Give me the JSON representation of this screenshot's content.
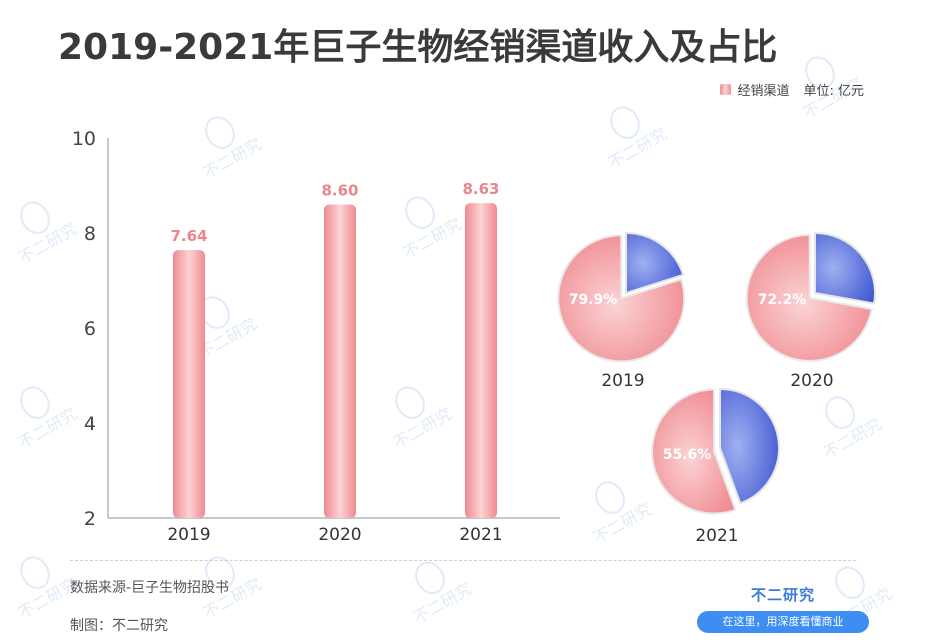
{
  "title": "2019-2021年巨子生物经销渠道收入及占比",
  "legend": {
    "series_name": "经销渠道",
    "unit": "单位: 亿元"
  },
  "colors": {
    "bar": "#f4a3a7",
    "bar_label": "#e8868a",
    "pie_main": "#f4a3a7",
    "pie_other": "#4d64d8"
  },
  "chart_data": [
    {
      "type": "bar",
      "categories": [
        "2019",
        "2020",
        "2021"
      ],
      "series": [
        {
          "name": "经销渠道",
          "values": [
            7.64,
            8.6,
            8.63
          ]
        }
      ],
      "data_labels": [
        "7.64",
        "8.60",
        "8.63"
      ],
      "yticks": [
        "2",
        "4",
        "6",
        "8",
        "10"
      ],
      "ylim": [
        2,
        10
      ],
      "grid": false
    },
    {
      "type": "pie",
      "pies": [
        {
          "label": "2019",
          "value": 79.9,
          "value_label": "79.9%"
        },
        {
          "label": "2020",
          "value": 72.2,
          "value_label": "72.2%"
        },
        {
          "label": "2021",
          "value": 55.6,
          "value_label": "55.6%"
        }
      ]
    }
  ],
  "footer": {
    "source": "数据来源-巨子生物招股书",
    "made_by": "制图：不二研究"
  },
  "brand": {
    "name": "不二研究",
    "tagline": "在这里，用深度看懂商业"
  },
  "watermark": {
    "text": "不二研究",
    "icon": "brand-mascot-icon"
  }
}
